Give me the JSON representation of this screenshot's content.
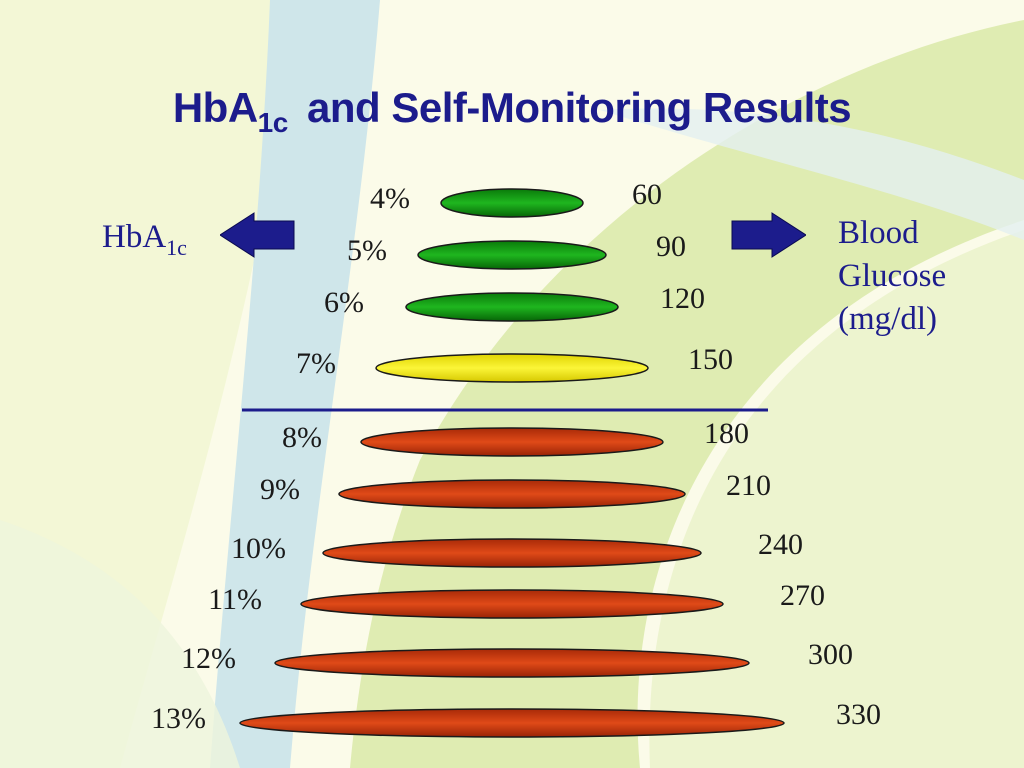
{
  "title": {
    "main": "HbA",
    "sub": "1c",
    "rest": "and Self-Monitoring Results"
  },
  "left_label": {
    "main": "HbA",
    "sub": "1c"
  },
  "right_label": {
    "lines": [
      "Blood",
      "Glucose",
      "(mg/dl)"
    ]
  },
  "colors": {
    "title": "#1c1c8c",
    "arrow": "#1c1c8c",
    "divider": "#1c1c8c",
    "green": "#12a012",
    "yellow": "#f5f01a",
    "red": "#d23a10"
  },
  "rows": [
    {
      "hba1c": "4%",
      "glucose": "60",
      "color": "green"
    },
    {
      "hba1c": "5%",
      "glucose": "90",
      "color": "green"
    },
    {
      "hba1c": "6%",
      "glucose": "120",
      "color": "green"
    },
    {
      "hba1c": "7%",
      "glucose": "150",
      "color": "yellow"
    },
    {
      "hba1c": "8%",
      "glucose": "180",
      "color": "red"
    },
    {
      "hba1c": "9%",
      "glucose": "210",
      "color": "red"
    },
    {
      "hba1c": "10%",
      "glucose": "240",
      "color": "red"
    },
    {
      "hba1c": "11%",
      "glucose": "270",
      "color": "red"
    },
    {
      "hba1c": "12%",
      "glucose": "300",
      "color": "red"
    },
    {
      "hba1c": "13%",
      "glucose": "330",
      "color": "red"
    }
  ]
}
